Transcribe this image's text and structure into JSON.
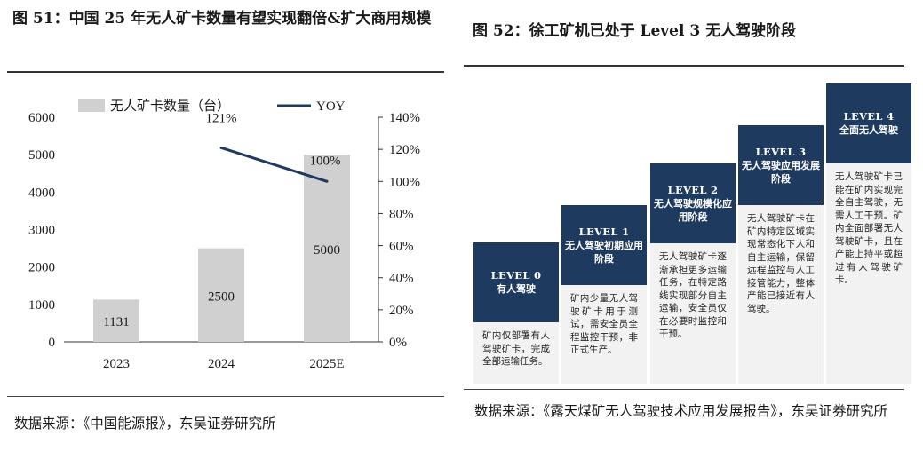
{
  "left": {
    "title": "图 51：中国 25 年无人矿卡数量有望实现翻倍&扩大商用规模",
    "source": "数据来源：《中国能源报》，东吴证券研究所"
  },
  "right": {
    "title": "图 52：徐工矿机已处于 Level 3 无人驾驶阶段",
    "source": "数据来源：《露天煤矿无人驾驶技术应用发展报告》，东吴证券研究所"
  },
  "chart_data": {
    "type": "bar",
    "categories": [
      "2023",
      "2024",
      "2025E"
    ],
    "series": [
      {
        "name": "无人矿卡数量（台）",
        "type": "bar",
        "axis": "left",
        "values": [
          1131,
          2500,
          5000
        ],
        "color": "#d0d0d0"
      },
      {
        "name": "YOY",
        "type": "line",
        "axis": "right",
        "values": [
          null,
          121,
          100
        ],
        "color": "#1f3a5f"
      }
    ],
    "data_labels": {
      "bars": [
        "1131",
        "2500",
        "5000"
      ],
      "line": [
        null,
        "121%",
        "100%"
      ]
    },
    "y_left": {
      "min": 0,
      "max": 6000,
      "ticks": [
        0,
        1000,
        2000,
        3000,
        4000,
        5000,
        6000
      ]
    },
    "y_right": {
      "min": 0,
      "max": 140,
      "ticks": [
        "0%",
        "20%",
        "40%",
        "60%",
        "80%",
        "100%",
        "120%",
        "140%"
      ]
    },
    "legend": "top",
    "grid": false
  },
  "levels": [
    {
      "level": "LEVEL 0",
      "name": "有人驾驶",
      "desc": "矿内仅部署有人驾驶矿卡，完成全部运输任务。"
    },
    {
      "level": "LEVEL 1",
      "name": "无人驾驶初期应用阶段",
      "desc": "矿内少量无人驾驶矿卡用于测试，需安全员全程监控干预，非正式生产。"
    },
    {
      "level": "LEVEL 2",
      "name": "无人驾驶规模化应用阶段",
      "desc": "无人驾驶矿卡逐渐承担更多运输任务，在特定路线实现部分自主运输，安全员仅在必要时监控和干预。"
    },
    {
      "level": "LEVEL 3",
      "name": "无人驾驶应用发展阶段",
      "desc": "无人驾驶矿卡在矿内特定区域实现常态化下人和自主运输，保留远程监控与人工接管能力，整体产能已接近有人驾驶。"
    },
    {
      "level": "LEVEL 4",
      "name": "全面无人驾驶",
      "desc": "无人驾驶矿卡已能在矿内实现完全自主驾驶，无需人工干预。矿内全面部署无人驾驶矿卡，且在产能上持平或超过有人驾驶矿卡。"
    }
  ]
}
